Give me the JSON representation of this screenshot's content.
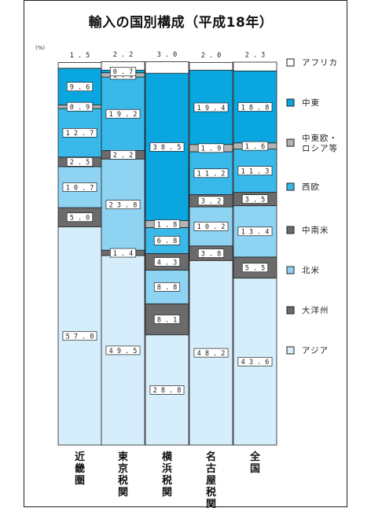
{
  "chart_data": {
    "type": "bar",
    "stacked": true,
    "normalized": true,
    "title": "輸入の国別構成（平成18年）",
    "unit_label": "(%)",
    "ylim": [
      0,
      100
    ],
    "categories": [
      "近畿圏",
      "東京税関",
      "横浜税関",
      "名古屋税関",
      "全国"
    ],
    "series": [
      {
        "name": "アジア",
        "color": "#d6eefb",
        "values": [
          57.0,
          49.5,
          28.8,
          48.2,
          43.6
        ]
      },
      {
        "name": "大洋州",
        "color": "#6b6b6b",
        "values": [
          5.0,
          1.4,
          8.1,
          3.8,
          5.5
        ]
      },
      {
        "name": "北米",
        "color": "#8fd3f3",
        "values": [
          10.7,
          23.8,
          8.8,
          10.2,
          13.4
        ]
      },
      {
        "name": "中南米",
        "color": "#6b6b6b",
        "values": [
          2.5,
          2.2,
          4.3,
          3.2,
          3.5
        ]
      },
      {
        "name": "西欧",
        "color": "#38b9ea",
        "values": [
          12.7,
          19.2,
          6.8,
          11.2,
          11.3
        ]
      },
      {
        "name": "中東欧・ロシア等",
        "color": "#b3b3b3",
        "values": [
          0.9,
          1.1,
          1.8,
          1.9,
          1.6
        ]
      },
      {
        "name": "中東",
        "color": "#0aa6e0",
        "values": [
          9.6,
          0.7,
          38.5,
          19.4,
          18.8
        ]
      },
      {
        "name": "アフリカ",
        "color": "#ffffff",
        "values": [
          1.5,
          2.2,
          3.0,
          2.0,
          2.3
        ]
      }
    ],
    "legend_order": [
      "アフリカ",
      "中東",
      "中東欧・ロシア等",
      "西欧",
      "中南米",
      "北米",
      "大洋州",
      "アジア"
    ],
    "legend_position": "right"
  }
}
